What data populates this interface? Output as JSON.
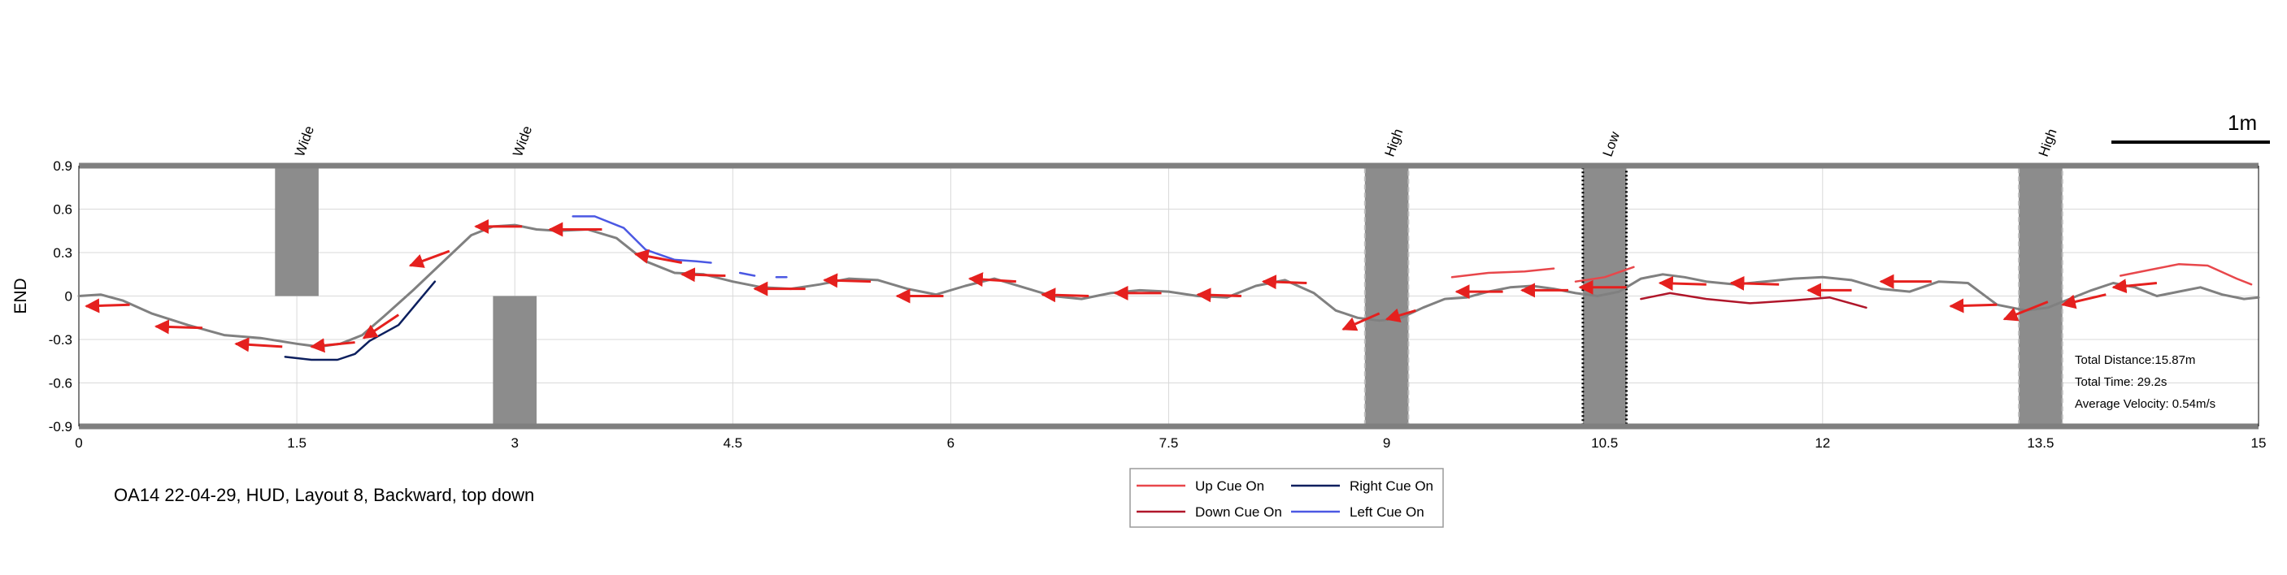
{
  "chart_data": {
    "type": "line",
    "title": "",
    "xlabel": "",
    "ylabel": "END",
    "xlim": [
      0,
      15
    ],
    "ylim": [
      -0.9,
      0.9
    ],
    "xticks": [
      0,
      1.5,
      3,
      4.5,
      6,
      7.5,
      9,
      10.5,
      12,
      13.5,
      15
    ],
    "xtick_labels": [
      "0",
      "1.5",
      "3",
      "4.5",
      "6",
      "7.5",
      "9",
      "10.5",
      "12",
      "13.5",
      "15"
    ],
    "yticks": [
      0.9,
      0.6,
      0.3,
      0,
      -0.3,
      -0.6,
      -0.9
    ],
    "ytick_labels": [
      "0.9",
      "0.6",
      "0.3",
      "0",
      "-0.3",
      "-0.6",
      "-0.9"
    ],
    "grid": true,
    "obstacles": [
      {
        "label": "Wide",
        "x_start": 1.35,
        "x_end": 1.65,
        "y_start": 0,
        "y_end": 0.9,
        "style": "solid"
      },
      {
        "label": "Wide",
        "x_start": 2.85,
        "x_end": 3.15,
        "y_start": -0.9,
        "y_end": 0,
        "style": "solid"
      },
      {
        "label": "High",
        "x_start": 8.85,
        "x_end": 9.15,
        "y_start": -0.9,
        "y_end": 0.9,
        "style": "dashed"
      },
      {
        "label": "Low",
        "x_start": 10.35,
        "x_end": 10.65,
        "y_start": -0.9,
        "y_end": 0.9,
        "style": "dotted"
      },
      {
        "label": "High",
        "x_start": 13.35,
        "x_end": 13.65,
        "y_start": -0.9,
        "y_end": 0.9,
        "style": "dashed"
      }
    ],
    "series": [
      {
        "color": "#808080",
        "x": [
          0,
          0.15,
          0.3,
          0.5,
          0.75,
          1.0,
          1.25,
          1.5,
          1.65,
          1.8,
          1.95,
          2.1,
          2.3,
          2.5,
          2.7,
          2.85,
          3.0,
          3.15,
          3.3,
          3.5,
          3.7,
          3.9,
          4.1,
          4.3,
          4.5,
          4.7,
          4.9,
          5.1,
          5.3,
          5.5,
          5.7,
          5.9,
          6.1,
          6.3,
          6.5,
          6.7,
          6.9,
          7.1,
          7.3,
          7.5,
          7.7,
          7.9,
          8.1,
          8.3,
          8.5,
          8.65,
          8.8,
          8.95,
          9.1,
          9.25,
          9.4,
          9.55,
          9.7,
          9.85,
          10.0,
          10.15,
          10.3,
          10.45,
          10.6,
          10.75,
          10.9,
          11.05,
          11.2,
          11.4,
          11.6,
          11.8,
          12.0,
          12.2,
          12.4,
          12.6,
          12.8,
          13.0,
          13.2,
          13.4,
          13.55,
          13.7,
          13.85,
          14.0,
          14.15,
          14.3,
          14.45,
          14.6,
          14.75,
          14.9,
          15.0
        ],
        "y": [
          0.0,
          0.01,
          -0.03,
          -0.12,
          -0.2,
          -0.27,
          -0.29,
          -0.33,
          -0.35,
          -0.33,
          -0.27,
          -0.14,
          0.04,
          0.23,
          0.42,
          0.48,
          0.49,
          0.46,
          0.45,
          0.46,
          0.4,
          0.24,
          0.16,
          0.15,
          0.1,
          0.06,
          0.05,
          0.08,
          0.12,
          0.11,
          0.05,
          0.01,
          0.07,
          0.12,
          0.06,
          0.0,
          -0.02,
          0.02,
          0.04,
          0.03,
          0.0,
          -0.01,
          0.07,
          0.11,
          0.02,
          -0.1,
          -0.15,
          -0.17,
          -0.15,
          -0.08,
          -0.02,
          -0.01,
          0.03,
          0.06,
          0.07,
          0.05,
          0.02,
          0.0,
          0.03,
          0.12,
          0.15,
          0.13,
          0.1,
          0.08,
          0.1,
          0.12,
          0.13,
          0.11,
          0.05,
          0.03,
          0.1,
          0.09,
          -0.06,
          -0.1,
          -0.08,
          -0.02,
          0.04,
          0.09,
          0.06,
          0.0,
          0.03,
          0.06,
          0.01,
          -0.02,
          -0.01
        ]
      },
      {
        "name": "Up Cue On",
        "color": "#e8474b",
        "segments": [
          {
            "x": [
              9.45,
              9.7,
              9.95,
              10.15
            ],
            "y": [
              0.13,
              0.16,
              0.17,
              0.19
            ]
          },
          {
            "x": [
              10.3,
              10.5,
              10.7
            ],
            "y": [
              0.1,
              0.13,
              0.2
            ]
          },
          {
            "x": [
              14.05,
              14.25,
              14.45,
              14.65,
              14.85,
              14.95
            ],
            "y": [
              0.14,
              0.18,
              0.22,
              0.21,
              0.12,
              0.08
            ]
          }
        ]
      },
      {
        "name": "Down Cue On",
        "color": "#b0162a",
        "segments": [
          {
            "x": [
              10.75,
              10.95,
              11.2,
              11.5,
              11.8,
              12.05,
              12.3
            ],
            "y": [
              -0.02,
              0.02,
              -0.02,
              -0.05,
              -0.03,
              -0.01,
              -0.08
            ]
          }
        ]
      },
      {
        "name": "Right Cue On",
        "color": "#0c1f5e",
        "segments": [
          {
            "x": [
              1.42,
              1.6,
              1.78,
              1.9,
              2.0,
              2.2,
              2.35,
              2.45
            ],
            "y": [
              -0.42,
              -0.44,
              -0.44,
              -0.4,
              -0.31,
              -0.2,
              -0.02,
              0.1
            ]
          }
        ]
      },
      {
        "name": "Left Cue On",
        "color": "#4b58e3",
        "segments": [
          {
            "x": [
              3.4,
              3.55,
              3.75,
              3.9,
              4.1,
              4.25,
              4.35
            ],
            "y": [
              0.55,
              0.55,
              0.47,
              0.32,
              0.25,
              0.24,
              0.23
            ]
          },
          {
            "x": [
              4.55,
              4.65
            ],
            "y": [
              0.16,
              0.14
            ]
          },
          {
            "x": [
              4.8,
              4.87
            ],
            "y": [
              0.13,
              0.13
            ]
          }
        ]
      }
    ],
    "direction_arrows": {
      "color": "#e5201e",
      "items": [
        {
          "x": 0.35,
          "y": -0.06,
          "dx": -0.3,
          "dy": -0.01
        },
        {
          "x": 0.85,
          "y": -0.22,
          "dx": -0.32,
          "dy": 0.01
        },
        {
          "x": 1.4,
          "y": -0.35,
          "dx": -0.32,
          "dy": 0.02
        },
        {
          "x": 1.9,
          "y": -0.32,
          "dx": -0.3,
          "dy": -0.03
        },
        {
          "x": 2.2,
          "y": -0.13,
          "dx": -0.24,
          "dy": -0.16
        },
        {
          "x": 2.55,
          "y": 0.31,
          "dx": -0.27,
          "dy": -0.1
        },
        {
          "x": 3.05,
          "y": 0.48,
          "dx": -0.32,
          "dy": 0.0
        },
        {
          "x": 3.6,
          "y": 0.46,
          "dx": -0.36,
          "dy": 0.0
        },
        {
          "x": 4.15,
          "y": 0.23,
          "dx": -0.32,
          "dy": 0.06
        },
        {
          "x": 4.45,
          "y": 0.14,
          "dx": -0.3,
          "dy": 0.01
        },
        {
          "x": 5.0,
          "y": 0.05,
          "dx": -0.35,
          "dy": 0.0
        },
        {
          "x": 5.45,
          "y": 0.1,
          "dx": -0.32,
          "dy": 0.01
        },
        {
          "x": 5.95,
          "y": 0.0,
          "dx": -0.32,
          "dy": 0.0
        },
        {
          "x": 6.45,
          "y": 0.1,
          "dx": -0.32,
          "dy": 0.02
        },
        {
          "x": 6.95,
          "y": 0.0,
          "dx": -0.32,
          "dy": 0.01
        },
        {
          "x": 7.45,
          "y": 0.02,
          "dx": -0.32,
          "dy": 0.0
        },
        {
          "x": 8.0,
          "y": 0.0,
          "dx": -0.3,
          "dy": 0.01
        },
        {
          "x": 8.45,
          "y": 0.09,
          "dx": -0.3,
          "dy": 0.01
        },
        {
          "x": 8.95,
          "y": -0.12,
          "dx": -0.25,
          "dy": -0.11
        },
        {
          "x": 9.2,
          "y": -0.1,
          "dx": -0.2,
          "dy": -0.06
        },
        {
          "x": 9.8,
          "y": 0.03,
          "dx": -0.32,
          "dy": 0.0
        },
        {
          "x": 10.25,
          "y": 0.04,
          "dx": -0.32,
          "dy": 0.0
        },
        {
          "x": 10.65,
          "y": 0.06,
          "dx": -0.32,
          "dy": 0.0
        },
        {
          "x": 11.2,
          "y": 0.08,
          "dx": -0.32,
          "dy": 0.01
        },
        {
          "x": 11.7,
          "y": 0.08,
          "dx": -0.33,
          "dy": 0.01
        },
        {
          "x": 12.2,
          "y": 0.04,
          "dx": -0.3,
          "dy": 0.0
        },
        {
          "x": 12.75,
          "y": 0.1,
          "dx": -0.35,
          "dy": 0.0
        },
        {
          "x": 13.2,
          "y": -0.06,
          "dx": -0.32,
          "dy": -0.01
        },
        {
          "x": 13.55,
          "y": -0.04,
          "dx": -0.3,
          "dy": -0.12
        },
        {
          "x": 13.95,
          "y": 0.01,
          "dx": -0.3,
          "dy": -0.07
        },
        {
          "x": 14.3,
          "y": 0.09,
          "dx": -0.3,
          "dy": -0.03
        }
      ]
    },
    "scale_bar_label": "1m",
    "stats": [
      "Total Distance:15.87m",
      "Total Time: 29.2s",
      "Average Velocity: 0.54m/s"
    ]
  },
  "caption": "OA14 22-04-29, HUD, Layout 8, Backward, top down"
}
